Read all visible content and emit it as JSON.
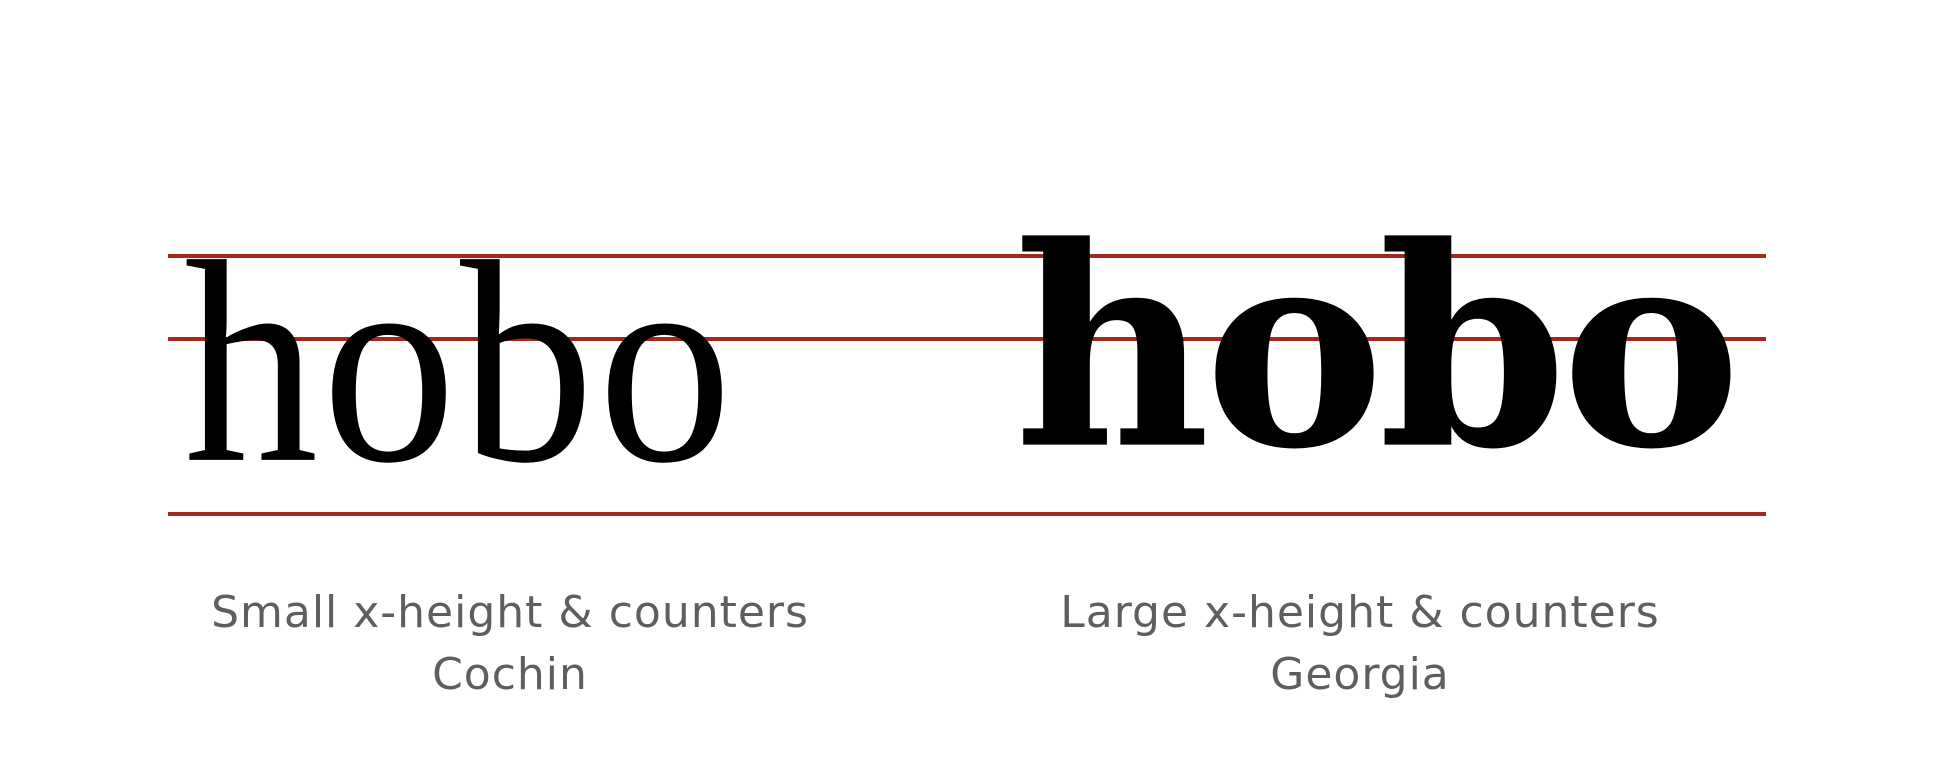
{
  "colors": {
    "guide_line": "#A1281B",
    "glyph": "#000000",
    "caption_text": "#5E5E5E"
  },
  "guides": [
    {
      "name": "ascender-line"
    },
    {
      "name": "x-height-line"
    },
    {
      "name": "baseline"
    }
  ],
  "samples": [
    {
      "word": "hobo",
      "caption": "Small x-height & counters",
      "font_name": "Cochin"
    },
    {
      "word": "hobo",
      "caption": "Large x-height & counters",
      "font_name": "Georgia"
    }
  ]
}
